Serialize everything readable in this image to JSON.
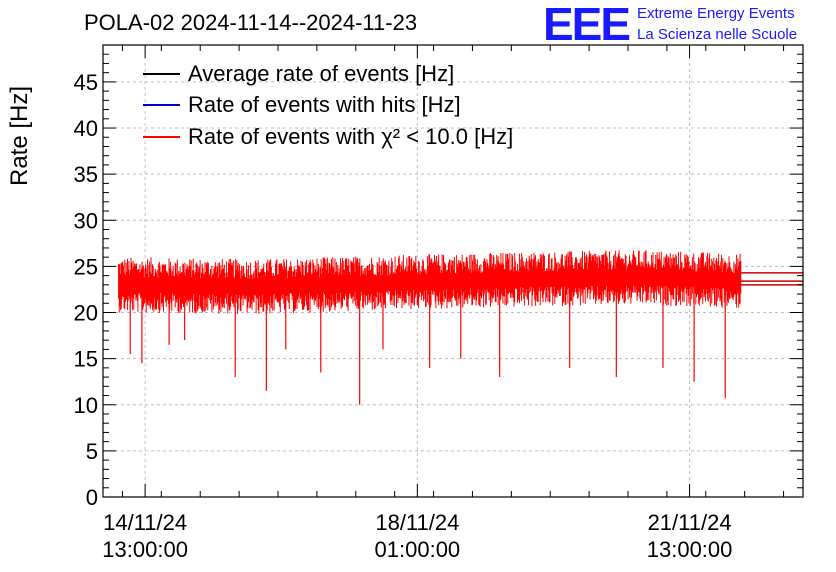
{
  "header": {
    "title": "POLA-02 2024-11-14--2024-11-23",
    "logo_text": "EEE",
    "logo_line1": "Extreme Energy Events",
    "logo_line2": "La Scienza nelle Scuole"
  },
  "chart_data": {
    "type": "line",
    "title": "POLA-02 2024-11-14--2024-11-23",
    "xlabel": "",
    "ylabel": "Rate [Hz]",
    "ylim": [
      0,
      49
    ],
    "yticks": [
      0,
      5,
      10,
      15,
      20,
      25,
      30,
      35,
      40,
      45
    ],
    "xlim_days": [
      0,
      9
    ],
    "x_unit": "days since 2024-11-14 00:00",
    "xticks": [
      {
        "day": 0.5417,
        "date": "14/11/24",
        "time": "13:00:00"
      },
      {
        "day": 4.0417,
        "date": "18/11/24",
        "time": "01:00:00"
      },
      {
        "day": 7.5417,
        "date": "21/11/24",
        "time": "13:00:00"
      }
    ],
    "grid": true,
    "legend_position": "top-left",
    "data_start_day": 0.2,
    "data_end_day": 8.2,
    "trend": {
      "x": [
        0.2,
        2.0,
        4.0,
        5.5,
        7.0,
        8.2
      ],
      "y": [
        23.2,
        23.0,
        23.5,
        23.8,
        24.0,
        23.6
      ]
    },
    "dips": {
      "x": [
        0.35,
        0.5,
        0.85,
        1.05,
        1.7,
        2.1,
        2.35,
        2.8,
        3.3,
        3.6,
        4.2,
        4.6,
        5.1,
        6.0,
        6.6,
        7.2,
        7.6,
        8.0
      ],
      "y": [
        15.5,
        14.5,
        16.5,
        17.0,
        13.0,
        11.5,
        16.0,
        13.5,
        10.0,
        16.0,
        14.0,
        15.0,
        13.0,
        14.0,
        13.0,
        14.0,
        12.5,
        10.7
      ]
    },
    "series": [
      {
        "name": "Average rate of events [Hz]",
        "color": "#000000",
        "mean": 23.6
      },
      {
        "name": "Rate of events with hits [Hz]",
        "color": "#0000cc",
        "mean": 23.6
      },
      {
        "name": "Rate of events with χ² < 10.0 [Hz]",
        "color": "#ff0000",
        "mean": 23.4
      }
    ]
  }
}
